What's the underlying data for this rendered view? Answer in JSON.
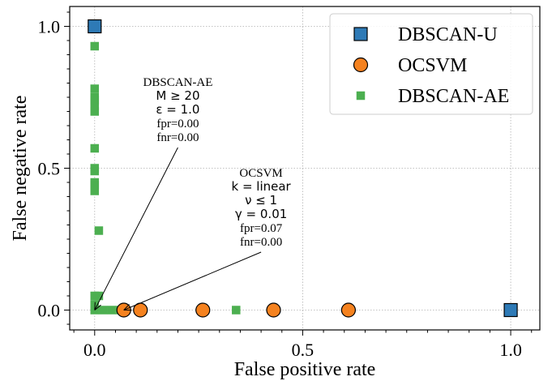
{
  "chart_data": {
    "type": "scatter",
    "xlabel": "False positive rate",
    "ylabel": "False negative rate",
    "xlim": [
      -0.06,
      1.07
    ],
    "ylim": [
      -0.07,
      1.07
    ],
    "xticks": [
      0.0,
      0.5,
      1.0
    ],
    "yticks": [
      0.0,
      0.5,
      1.0
    ],
    "tick_labels_x": [
      "0.0",
      "0.5",
      "1.0"
    ],
    "tick_labels_y": [
      "0.0",
      "0.5",
      "1.0"
    ],
    "grid": true,
    "legend_position": "top-right",
    "series": [
      {
        "name": "DBSCAN-U",
        "marker": "square",
        "color": "#2e7ab6",
        "points": [
          [
            0.0,
            1.0
          ],
          [
            1.0,
            0.0
          ]
        ]
      },
      {
        "name": "OCSVM",
        "marker": "circle",
        "color": "#f5821f",
        "points": [
          [
            0.07,
            0.0
          ],
          [
            0.11,
            0.0
          ],
          [
            0.26,
            0.0
          ],
          [
            0.43,
            0.0
          ],
          [
            0.61,
            0.0
          ]
        ]
      },
      {
        "name": "DBSCAN-AE",
        "marker": "small-square",
        "color": "#4caf50",
        "points": [
          [
            0.0,
            0.93
          ],
          [
            0.0,
            0.78
          ],
          [
            0.0,
            0.75
          ],
          [
            0.0,
            0.74
          ],
          [
            0.0,
            0.72
          ],
          [
            0.0,
            0.7
          ],
          [
            0.0,
            0.57
          ],
          [
            0.0,
            0.5
          ],
          [
            0.0,
            0.49
          ],
          [
            0.0,
            0.45
          ],
          [
            0.0,
            0.44
          ],
          [
            0.0,
            0.42
          ],
          [
            0.01,
            0.28
          ],
          [
            0.0,
            0.05
          ],
          [
            0.01,
            0.05
          ],
          [
            0.0,
            0.02
          ],
          [
            0.0,
            0.0
          ],
          [
            0.02,
            0.0
          ],
          [
            0.04,
            0.0
          ],
          [
            0.06,
            0.0
          ],
          [
            0.34,
            0.0
          ]
        ]
      }
    ],
    "annotations": [
      {
        "lines": [
          {
            "text": "DBSCAN-AE",
            "math": false
          },
          {
            "text": "M ≥ 20",
            "math": true
          },
          {
            "text": "ε = 1.0",
            "math": true
          },
          {
            "text": "fpr=0.00",
            "math": false
          },
          {
            "text": "fnr=0.00",
            "math": false
          }
        ],
        "target": [
          0.0,
          0.0
        ],
        "text_anchor": [
          0.2,
          0.79
        ]
      },
      {
        "lines": [
          {
            "text": "OCSVM",
            "math": false
          },
          {
            "text": "k = linear",
            "math": true
          },
          {
            "text": "ν ≤ 1",
            "math": true
          },
          {
            "text": "γ = 0.01",
            "math": true
          },
          {
            "text": "fpr=0.07",
            "math": false
          },
          {
            "text": "fnr=0.00",
            "math": false
          }
        ],
        "target": [
          0.07,
          0.0
        ],
        "text_anchor": [
          0.4,
          0.47
        ]
      }
    ]
  }
}
